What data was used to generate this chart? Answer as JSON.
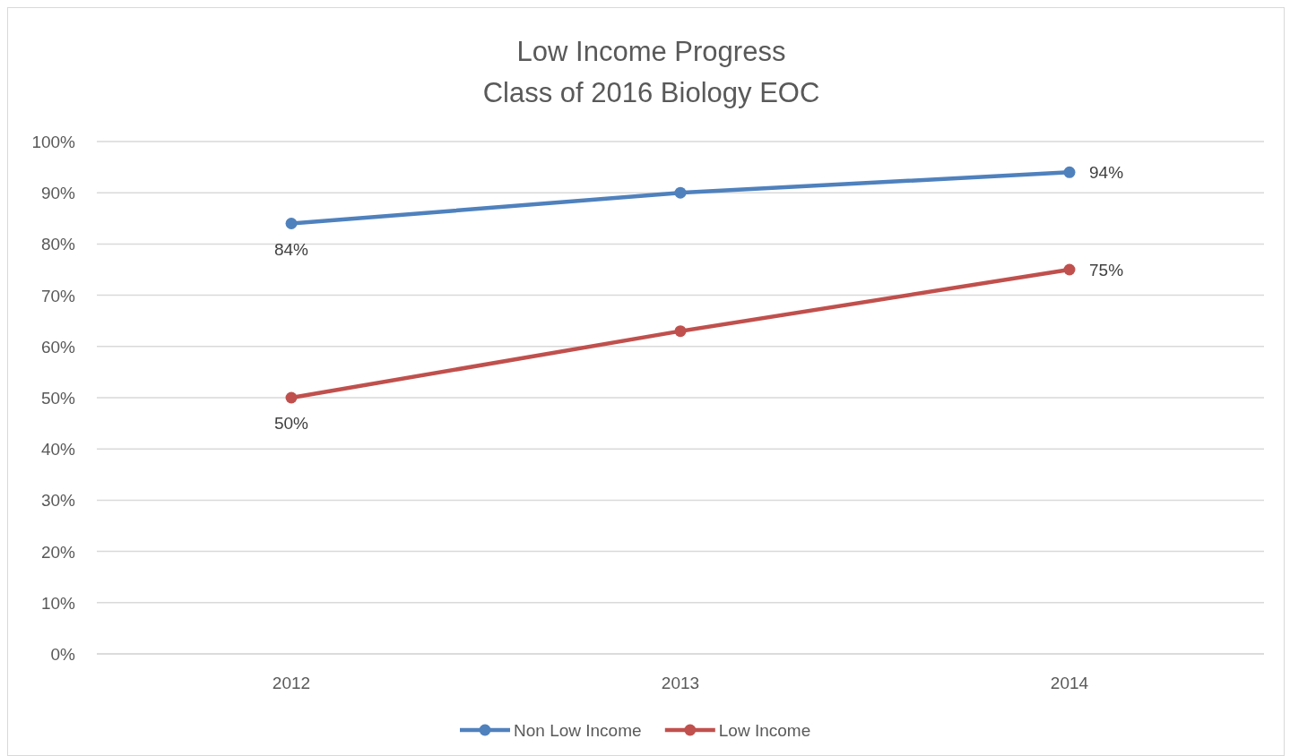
{
  "chart_data": {
    "type": "line",
    "title": "Low Income Progress",
    "subtitle": "Class of 2016 Biology EOC",
    "categories": [
      "2012",
      "2013",
      "2014"
    ],
    "series": [
      {
        "name": "Non Low Income",
        "color": "#4f81bd",
        "values": [
          84,
          90,
          94
        ],
        "value_labels": [
          "84%",
          null,
          "94%"
        ]
      },
      {
        "name": "Low Income",
        "color": "#c0504d",
        "values": [
          50,
          63,
          75
        ],
        "value_labels": [
          "50%",
          null,
          "75%"
        ]
      }
    ],
    "ylim": [
      0,
      100
    ],
    "yticks": [
      {
        "value": 0,
        "label": "0%"
      },
      {
        "value": 10,
        "label": "10%"
      },
      {
        "value": 20,
        "label": "20%"
      },
      {
        "value": 30,
        "label": "30%"
      },
      {
        "value": 40,
        "label": "40%"
      },
      {
        "value": 50,
        "label": "50%"
      },
      {
        "value": 60,
        "label": "60%"
      },
      {
        "value": 70,
        "label": "70%"
      },
      {
        "value": 80,
        "label": "80%"
      },
      {
        "value": 90,
        "label": "90%"
      },
      {
        "value": 100,
        "label": "100%"
      }
    ],
    "grid": "y",
    "legend": "bottom",
    "marker": "circle",
    "line_style": "solid"
  }
}
